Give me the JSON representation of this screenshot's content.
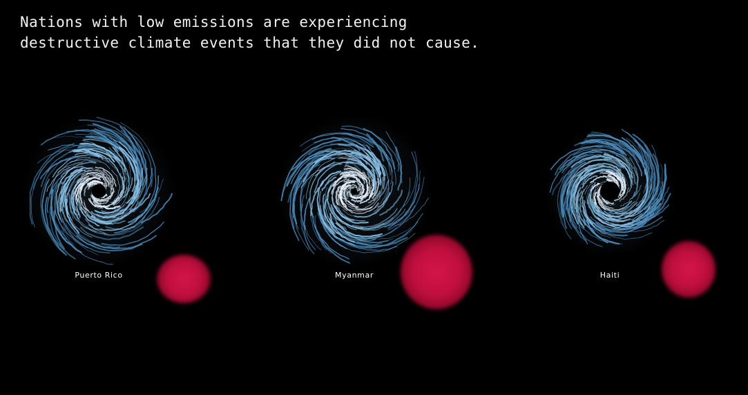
{
  "headline": {
    "line1": "Nations with low emissions are experiencing",
    "line2": "destructive climate events that they did not cause."
  },
  "panels": [
    {
      "label": "Puerto Rico",
      "storm_icon": "hurricane-swirl-icon",
      "blob_icon": "emissions-blob-icon"
    },
    {
      "label": "Myanmar",
      "storm_icon": "hurricane-swirl-icon",
      "blob_icon": "emissions-blob-icon"
    },
    {
      "label": "Haiti",
      "storm_icon": "hurricane-swirl-icon",
      "blob_icon": "emissions-blob-icon"
    }
  ],
  "colors": {
    "background": "#000000",
    "storm_core": "#e8f4ff",
    "storm_mid": "#8cc4ea",
    "storm_outer": "#4f8fc0",
    "emissions_blob": "#c2103f"
  }
}
